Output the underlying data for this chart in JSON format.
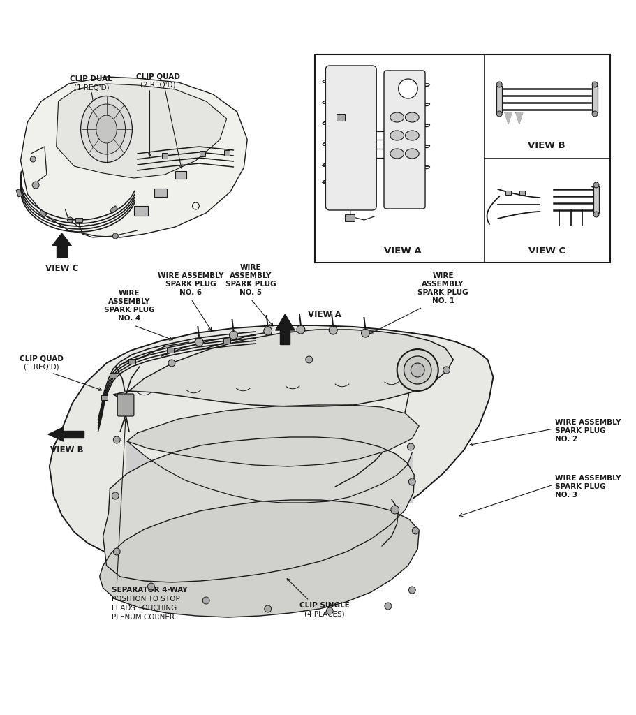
{
  "bg_color": "#ffffff",
  "line_color": "#1a1a1a",
  "labels": {
    "clip_dual": "CLIP DUAL",
    "clip_dual_req": "(1 REQ'D)",
    "clip_quad_top": "CLIP QUAD",
    "clip_quad_req_top": "(2 REQ'D)",
    "view_c_label": "VIEW C",
    "view_a_box": "VIEW A",
    "view_b_box": "VIEW B",
    "view_c_box": "VIEW C",
    "wire5_1": "WIRE",
    "wire5_2": "ASSEMBLY",
    "wire5_3": "SPARK PLUG",
    "wire5_4": "NO. 5",
    "wire6_1": "WIRE ASSEMBLY",
    "wire6_2": "SPARK PLUG",
    "wire6_3": "NO. 6",
    "wire4_1": "WIRE",
    "wire4_2": "ASSEMBLY",
    "wire4_3": "SPARK PLUG",
    "wire4_4": "NO. 4",
    "wire1_1": "WIRE",
    "wire1_2": "ASSEMBLY",
    "wire1_3": "SPARK PLUG",
    "wire1_4": "NO. 1",
    "clip_quad_main_1": "CLIP QUAD",
    "clip_quad_main_2": "(1 REQ'D)",
    "view_a_main": "VIEW A",
    "wire2_1": "WIRE ASSEMBLY",
    "wire2_2": "SPARK PLUG",
    "wire2_3": "NO. 2",
    "wire3_1": "WIRE ASSEMBLY",
    "wire3_2": "SPARK PLUG",
    "wire3_3": "NO. 3",
    "view_b_main": "VIEW B",
    "sep_1": "SEPARATOR 4-WAY",
    "sep_2": "POSITION TO STOP",
    "sep_3": "LEADS TOUCHING",
    "sep_4": "PLENUM CORNER.",
    "clip_single_1": "CLIP SINGLE",
    "clip_single_2": "(4 PLACES)"
  }
}
